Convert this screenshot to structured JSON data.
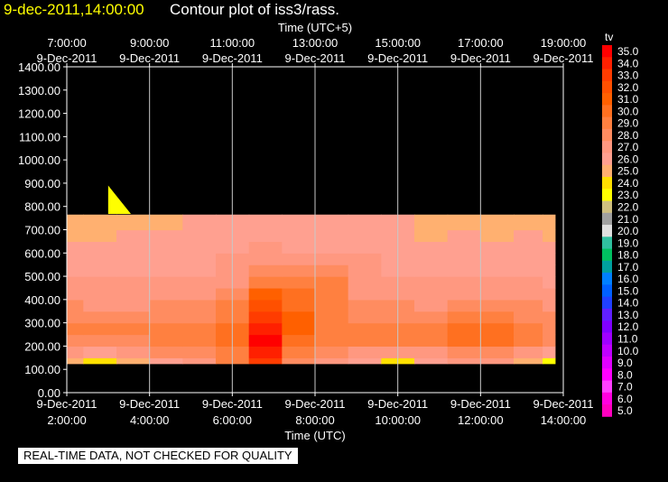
{
  "title": {
    "date": "9-dec-2011,14:00:00",
    "text": "Contour plot of iss3/rass."
  },
  "note": "REAL-TIME DATA, NOT CHECKED FOR QUALITY",
  "chart_data": {
    "type": "heatmap",
    "top_axis_label": "Time (UTC+5)",
    "top_ticks": [
      [
        "7:00:00",
        "9-Dec-2011"
      ],
      [
        "9:00:00",
        "9-Dec-2011"
      ],
      [
        "11:00:00",
        "9-Dec-2011"
      ],
      [
        "13:00:00",
        "9-Dec-2011"
      ],
      [
        "15:00:00",
        "9-Dec-2011"
      ],
      [
        "17:00:00",
        "9-Dec-2011"
      ],
      [
        "19:00:00",
        "9-Dec-2011"
      ]
    ],
    "xlabel": "Time (UTC)",
    "x_ticks": [
      [
        "9-Dec-2011",
        "2:00:00"
      ],
      [
        "9-Dec-2011",
        "4:00:00"
      ],
      [
        "9-Dec-2011",
        "6:00:00"
      ],
      [
        "9-Dec-2011",
        "8:00:00"
      ],
      [
        "9-Dec-2011",
        "10:00:00"
      ],
      [
        "9-Dec-2011",
        "12:00:00"
      ],
      [
        "9-Dec-2011",
        "14:00:00"
      ]
    ],
    "x_hours": [
      2,
      4,
      6,
      8,
      10,
      12,
      14
    ],
    "xlim": [
      2,
      14
    ],
    "ylim": [
      0,
      1400
    ],
    "y_ticks": [
      "0.00",
      "100.00",
      "200.00",
      "300.00",
      "400.00",
      "500.00",
      "600.00",
      "700.00",
      "800.00",
      "900.00",
      "1000.00",
      "1100.00",
      "1200.00",
      "1300.00",
      "1400.00"
    ],
    "grid": true,
    "colorbar": {
      "label": "tv",
      "levels": [
        "35.0",
        "34.0",
        "33.0",
        "32.0",
        "31.0",
        "30.0",
        "29.0",
        "28.0",
        "27.0",
        "26.0",
        "25.0",
        "24.0",
        "23.0",
        "22.0",
        "21.0",
        "20.0",
        "19.0",
        "18.0",
        "17.0",
        "16.0",
        "15.0",
        "14.0",
        "13.0",
        "12.0",
        "11.0",
        "10.0",
        "9.0",
        "8.0",
        "7.0",
        "6.0",
        "5.0"
      ],
      "colors": [
        "#ff0000",
        "#ff2000",
        "#ff3c00",
        "#ff5000",
        "#ff6000",
        "#ff7020",
        "#ff8040",
        "#ff8c60",
        "#ff9880",
        "#ffa090",
        "#ffb070",
        "#ffe000",
        "#ffff00",
        "#d0c080",
        "#a0a0a0",
        "#e0e0e0",
        "#30c0a0",
        "#00c060",
        "#00a0a0",
        "#0080ff",
        "#0060ff",
        "#2040ff",
        "#6020ff",
        "#8000ff",
        "#a000ff",
        "#c000ff",
        "#e000ff",
        "#ff00ff",
        "#ff40ff",
        "#ff00e0",
        "#ff00c0"
      ]
    },
    "data_extent": {
      "x": [
        2.0,
        13.8
      ],
      "y": [
        125,
        765
      ]
    },
    "levels_y": [
      125,
      175,
      225,
      275,
      325,
      375,
      425,
      475,
      525,
      575,
      625,
      675,
      725,
      765
    ],
    "times": [
      2.0,
      2.8,
      3.6,
      4.4,
      5.2,
      6.0,
      6.8,
      7.6,
      8.4,
      9.2,
      10.0,
      10.8,
      11.6,
      12.4,
      13.2,
      13.8
    ],
    "values": [
      [
        25,
        24,
        25,
        26,
        27,
        29,
        33,
        28,
        27,
        26,
        24,
        26,
        27,
        27,
        25,
        23
      ],
      [
        27,
        26,
        27,
        28,
        28,
        29,
        34,
        29,
        28,
        27,
        27,
        27,
        28,
        28,
        27,
        26
      ],
      [
        28,
        28,
        28,
        29,
        29,
        30,
        35,
        30,
        29,
        29,
        29,
        29,
        30,
        30,
        29,
        28
      ],
      [
        29,
        29,
        29,
        29,
        29,
        30,
        34,
        31,
        29,
        29,
        29,
        29,
        30,
        30,
        29,
        28
      ],
      [
        28,
        28,
        28,
        28,
        28,
        29,
        33,
        31,
        29,
        28,
        28,
        28,
        29,
        29,
        28,
        28
      ],
      [
        28,
        27,
        27,
        28,
        28,
        29,
        32,
        30,
        29,
        28,
        28,
        27,
        28,
        28,
        28,
        27
      ],
      [
        27,
        27,
        27,
        27,
        27,
        28,
        31,
        30,
        29,
        27,
        27,
        27,
        27,
        27,
        27,
        27
      ],
      [
        27,
        27,
        27,
        27,
        27,
        27,
        29,
        29,
        29,
        27,
        27,
        27,
        27,
        27,
        27,
        26
      ],
      [
        26,
        26,
        26,
        26,
        26,
        27,
        28,
        28,
        28,
        27,
        26,
        26,
        26,
        26,
        26,
        26
      ],
      [
        26,
        26,
        26,
        26,
        26,
        27,
        27,
        27,
        27,
        27,
        26,
        26,
        26,
        26,
        26,
        26
      ],
      [
        26,
        26,
        26,
        26,
        26,
        26,
        27,
        26,
        26,
        26,
        26,
        26,
        26,
        26,
        26,
        26
      ],
      [
        25,
        25,
        26,
        26,
        26,
        26,
        26,
        26,
        26,
        26,
        26,
        25,
        26,
        25,
        26,
        25
      ],
      [
        25,
        25,
        25,
        25,
        26,
        26,
        26,
        26,
        26,
        26,
        26,
        25,
        25,
        25,
        25,
        25
      ],
      [
        25,
        25,
        25,
        25,
        26,
        26,
        26,
        26,
        26,
        26,
        26,
        25,
        25,
        25,
        25,
        25
      ]
    ],
    "patch": {
      "value": 23,
      "points": [
        [
          3.0,
          890
        ],
        [
          3.55,
          768
        ],
        [
          3.0,
          768
        ]
      ]
    }
  }
}
